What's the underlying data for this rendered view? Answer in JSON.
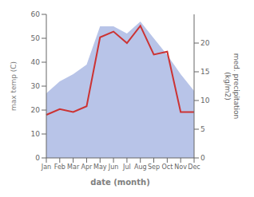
{
  "chart_data": {
    "type": "area",
    "categories": [
      "Jan",
      "Feb",
      "Mar",
      "Apr",
      "May",
      "Jun",
      "Jul",
      "Aug",
      "Sep",
      "Oct",
      "Nov",
      "Dec"
    ],
    "series": [
      {
        "type": "area",
        "color": "#b8c4e8",
        "values": [
          27,
          32,
          35,
          39,
          55,
          55,
          52,
          57,
          50,
          43,
          35,
          28
        ]
      },
      {
        "type": "line",
        "axis": "y2",
        "color": "#cc3333",
        "values": [
          7.5,
          8.5,
          8,
          9,
          21,
          22,
          20,
          23,
          18,
          18.5,
          8,
          8
        ]
      }
    ],
    "xlabel": "date (month)",
    "ylabel": "max temp (C)",
    "y2label": "med. precipitation\n(kg/m2)",
    "ylim": [
      0,
      60
    ],
    "yticks": [
      0,
      10,
      20,
      30,
      40,
      50,
      60
    ],
    "y2lim": [
      0,
      25
    ],
    "y2ticks": [
      0,
      5,
      10,
      15,
      20
    ],
    "grid": false
  }
}
